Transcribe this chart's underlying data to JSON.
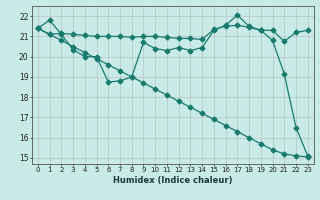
{
  "xlabel": "Humidex (Indice chaleur)",
  "background_color": "#c8ebe8",
  "grid_color": "#b0b0b0",
  "line_color": "#1a7a6e",
  "xlim": [
    -0.5,
    23.5
  ],
  "ylim": [
    14.7,
    22.5
  ],
  "yticks": [
    15,
    16,
    17,
    18,
    19,
    20,
    21,
    22
  ],
  "xticks": [
    0,
    1,
    2,
    3,
    4,
    5,
    6,
    7,
    8,
    9,
    10,
    11,
    12,
    13,
    14,
    15,
    16,
    17,
    18,
    19,
    20,
    21,
    22,
    23
  ],
  "line1_x": [
    0,
    1,
    2,
    3,
    4,
    5,
    6,
    7,
    8,
    9,
    10,
    11,
    12,
    13,
    14,
    15,
    16,
    17,
    18,
    19,
    20,
    21,
    22,
    23
  ],
  "line1_y": [
    21.4,
    21.8,
    21.1,
    20.35,
    20.0,
    20.0,
    18.75,
    18.8,
    19.0,
    20.7,
    20.4,
    20.3,
    20.45,
    20.3,
    20.45,
    21.3,
    21.55,
    22.05,
    21.5,
    21.3,
    20.8,
    19.15,
    16.5,
    15.1
  ],
  "line2_x": [
    0,
    1,
    2,
    3,
    4,
    5,
    6,
    7,
    8,
    9,
    10,
    11,
    12,
    13,
    14,
    15,
    16,
    17,
    18,
    19,
    20,
    21,
    22,
    23
  ],
  "line2_y": [
    21.4,
    21.1,
    20.8,
    20.5,
    20.2,
    19.9,
    19.6,
    19.3,
    19.0,
    18.7,
    18.4,
    18.1,
    17.8,
    17.5,
    17.2,
    16.9,
    16.6,
    16.3,
    16.0,
    15.7,
    15.4,
    15.2,
    15.1,
    15.05
  ],
  "line3_x": [
    0,
    1,
    2,
    3,
    4,
    5,
    6,
    7,
    8,
    9,
    10,
    11,
    12,
    13,
    14,
    15,
    16,
    17,
    18,
    19,
    20,
    21,
    22,
    23
  ],
  "line3_y": [
    21.4,
    21.1,
    21.15,
    21.1,
    21.05,
    21.0,
    21.0,
    21.0,
    20.95,
    21.0,
    21.0,
    20.95,
    20.9,
    20.9,
    20.85,
    21.35,
    21.5,
    21.55,
    21.45,
    21.3,
    21.3,
    20.75,
    21.2,
    21.3
  ]
}
